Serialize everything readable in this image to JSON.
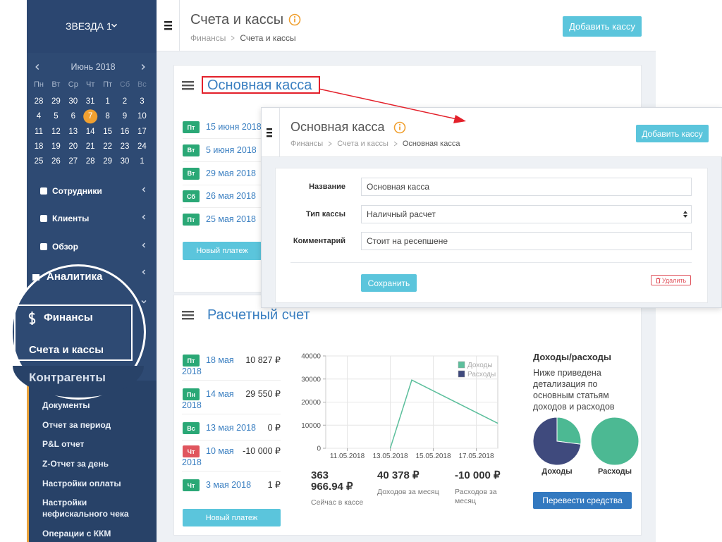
{
  "sidebar": {
    "company": "ЗВЕЗДА 1",
    "calendar": {
      "month": "Июнь 2018",
      "weekdays": [
        "Пн",
        "Вт",
        "Ср",
        "Чт",
        "Пт",
        "Сб",
        "Вс"
      ],
      "weeks": [
        [
          "28",
          "29",
          "30",
          "31",
          "1",
          "2",
          "3"
        ],
        [
          "4",
          "5",
          "6",
          "7",
          "8",
          "9",
          "10"
        ],
        [
          "11",
          "12",
          "13",
          "14",
          "15",
          "16",
          "17"
        ],
        [
          "18",
          "19",
          "20",
          "21",
          "22",
          "23",
          "24"
        ],
        [
          "25",
          "26",
          "27",
          "28",
          "29",
          "30",
          "1"
        ]
      ],
      "today": "7"
    },
    "menu": [
      "Сотрудники",
      "Клиенты",
      "Обзор",
      "Аналитика"
    ],
    "zoom": {
      "section": "Финансы",
      "active": "Счета и кассы",
      "next": "Контрагенты"
    },
    "submenu": [
      "Документы",
      "Отчет за период",
      "P&L отчет",
      "Z-Отчет за день",
      "Настройки оплаты",
      "Настройки нефискального чека",
      "Операции с ККМ"
    ]
  },
  "header": {
    "title": "Счета и кассы",
    "breadcrumbs": [
      "Финансы",
      "Счета и кассы"
    ],
    "button": "Добавить кассу"
  },
  "cash_card": {
    "title": "Основная касса",
    "payments": [
      {
        "day": "Пт",
        "date": "15 июня 2018",
        "color": "#2aa876"
      },
      {
        "day": "Вт",
        "date": "5 июня 2018",
        "color": "#2aa876"
      },
      {
        "day": "Вт",
        "date": "29 мая 2018",
        "color": "#2aa876"
      },
      {
        "day": "Сб",
        "date": "26 мая 2018",
        "color": "#2aa876"
      },
      {
        "day": "Пт",
        "date": "25 мая 2018",
        "color": "#2aa876"
      }
    ],
    "button": "Новый платеж"
  },
  "popup": {
    "title": "Основная касса",
    "breadcrumbs": [
      "Финансы",
      "Счета и кассы",
      "Основная касса"
    ],
    "button": "Добавить кассу",
    "fields": [
      {
        "label": "Название",
        "value": "Основная касса"
      },
      {
        "label": "Тип кассы",
        "value": "Наличный расчет"
      },
      {
        "label": "Комментарий",
        "value": "Стоит на ресепшене"
      }
    ],
    "save": "Сохранить",
    "delete": "Удалить"
  },
  "account_card": {
    "title": "Расчетный счет",
    "payments": [
      {
        "day": "Пт",
        "date": "18 мая 2018",
        "amount": "10 827 ₽",
        "color": "#2aa876"
      },
      {
        "day": "Пн",
        "date": "14 мая 2018",
        "amount": "29 550 ₽",
        "color": "#2aa876"
      },
      {
        "day": "Вс",
        "date": "13 мая 2018",
        "amount": "0 ₽",
        "color": "#2aa876"
      },
      {
        "day": "Чт",
        "date": "10 мая 2018",
        "amount": "-10 000 ₽",
        "color": "#e0555e"
      },
      {
        "day": "Чт",
        "date": "3 мая 2018",
        "amount": "1 ₽",
        "color": "#2aa876"
      }
    ],
    "button": "Новый платеж"
  },
  "chart": {
    "type": "line",
    "x": [
      "2018-05-13",
      "2018-05-14",
      "2018-05-18"
    ],
    "series": [
      {
        "name": "Доходы",
        "color": "#5cbf9c",
        "values": [
          0,
          29550,
          10827
        ]
      },
      {
        "name": "Расходы",
        "color": "#3f4a7d",
        "values": [
          null,
          null,
          null
        ]
      }
    ],
    "xlim": [
      "2018-05-10",
      "2018-05-18"
    ],
    "xticks": [
      {
        "value": "2018-05-11",
        "label": "11.05.2018"
      },
      {
        "value": "2018-05-13",
        "label": "13.05.2018"
      },
      {
        "value": "2018-05-15",
        "label": "15.05.2018"
      },
      {
        "value": "2018-05-17",
        "label": "17.05.2018"
      }
    ],
    "ylim": [
      0,
      40000
    ],
    "yticks": [
      0,
      10000,
      20000,
      30000,
      40000
    ],
    "grid": true,
    "legend": "top-right"
  },
  "stats": [
    {
      "value": "363 966.94 ₽",
      "label": "Сейчас в кассе"
    },
    {
      "value": "40 378 ₽",
      "label": "Доходов за месяц"
    },
    {
      "value": "-10 000 ₽",
      "label": "Расходов за месяц"
    }
  ],
  "breakdown": {
    "title": "Доходы/расходы",
    "text": "Ниже приведена детализация по основным статьям доходов и расходов",
    "pies": [
      {
        "type": "pie",
        "label": "Доходы",
        "values": [
          27,
          73
        ],
        "colors": [
          "#4cb993",
          "#3f4a7d"
        ]
      },
      {
        "type": "pie",
        "label": "Расходы",
        "values": [
          100
        ],
        "colors": [
          "#4cb993"
        ]
      }
    ],
    "button": "Перевести средства"
  }
}
